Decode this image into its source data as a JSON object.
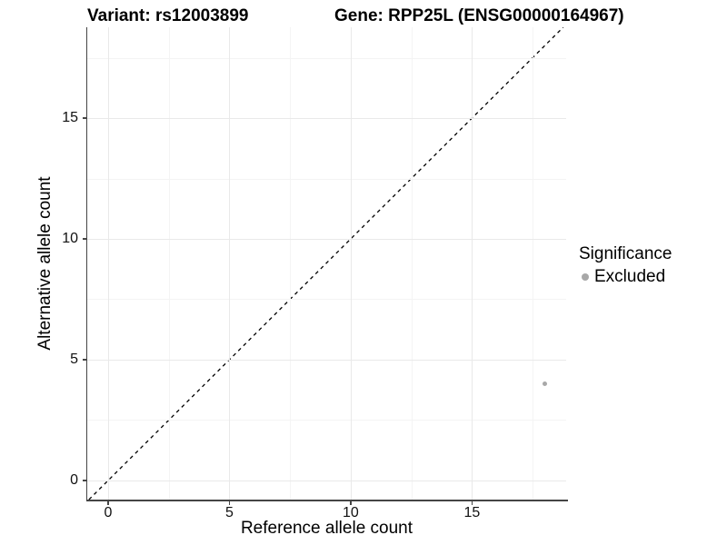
{
  "titles": {
    "left": "Variant: rs12003899",
    "right": "Gene: RPP25L (ENSG00000164967)"
  },
  "axes": {
    "x_title": "Reference allele count",
    "y_title": "Alternative allele count"
  },
  "legend": {
    "title": "Significance",
    "items": [
      {
        "label": "Excluded",
        "color": "#a8a8a8"
      }
    ]
  },
  "chart_data": {
    "type": "scatter",
    "title": "Variant: rs12003899 | Gene: RPP25L (ENSG00000164967)",
    "xlabel": "Reference allele count",
    "ylabel": "Alternative allele count",
    "xlim": [
      -0.86,
      18.88
    ],
    "ylim": [
      -0.79,
      18.76
    ],
    "x_ticks": [
      0,
      5,
      10,
      15
    ],
    "y_ticks": [
      0,
      5,
      10,
      15
    ],
    "x_minor_ticks": [
      2.5,
      7.5,
      12.5,
      17.5
    ],
    "y_minor_ticks": [
      2.5,
      7.5,
      12.5,
      17.5
    ],
    "grid": "major+minor",
    "legend_position": "right",
    "series": [
      {
        "name": "Excluded",
        "color": "#a8a8a8",
        "points": [
          {
            "x": 18,
            "y": 4
          }
        ]
      }
    ],
    "reference_line": {
      "slope": 1,
      "intercept": 0,
      "style": "dashed",
      "color": "#000000"
    }
  }
}
